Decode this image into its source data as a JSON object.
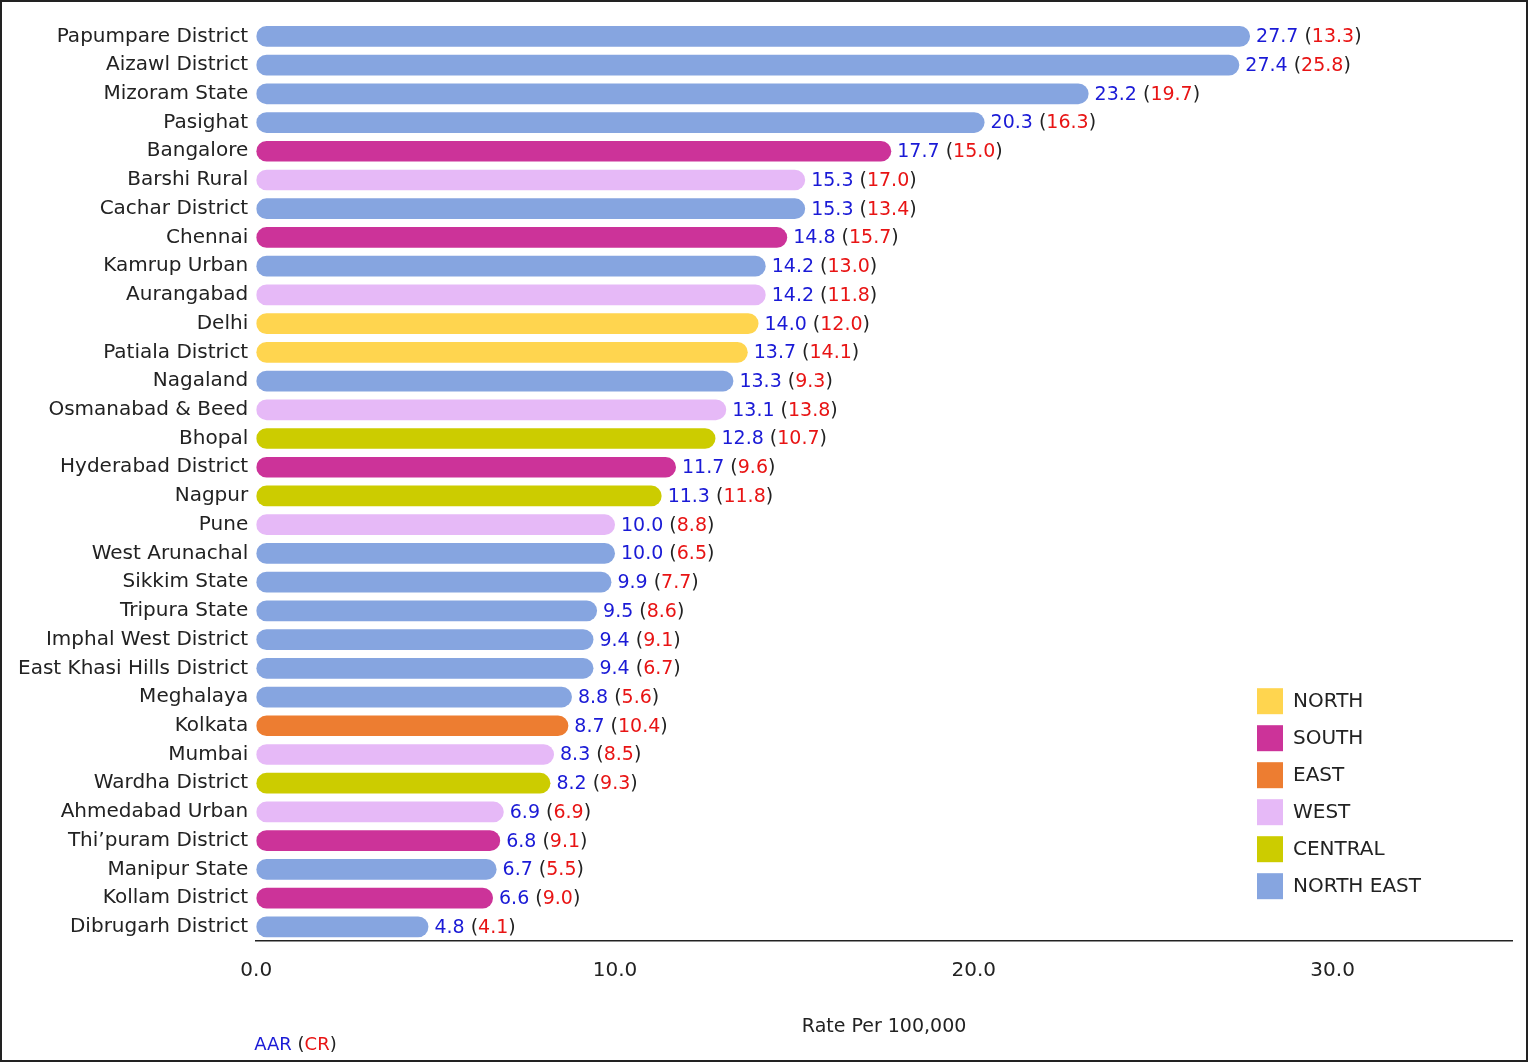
{
  "chart_data": {
    "type": "bar",
    "orientation": "horizontal",
    "categories": [
      "Papumpare District",
      "Aizawl District",
      "Mizoram State",
      "Pasighat",
      "Bangalore",
      "Barshi Rural",
      "Cachar District",
      "Chennai",
      "Kamrup Urban",
      "Aurangabad",
      "Delhi",
      "Patiala District",
      "Nagaland",
      "Osmanabad & Beed",
      "Bhopal",
      "Hyderabad District",
      "Nagpur",
      "Pune",
      "West Arunachal",
      "Sikkim State",
      "Tripura State",
      "Imphal West District",
      "East Khasi Hills District",
      "Meghalaya",
      "Kolkata",
      "Mumbai",
      "Wardha District",
      "Ahmedabad Urban",
      "Thi’puram District",
      "Manipur State",
      "Kollam District",
      "Dibrugarh District"
    ],
    "values": [
      27.7,
      27.4,
      23.2,
      20.3,
      17.7,
      15.3,
      15.3,
      14.8,
      14.2,
      14.2,
      14.0,
      13.7,
      13.3,
      13.1,
      12.8,
      11.7,
      11.3,
      10.0,
      10.0,
      9.9,
      9.5,
      9.4,
      9.4,
      8.8,
      8.7,
      8.3,
      8.2,
      6.9,
      6.8,
      6.7,
      6.6,
      4.8
    ],
    "value_labels": [
      "27.7",
      "27.4",
      "23.2",
      "20.3",
      "17.7",
      "15.3",
      "15.3",
      "14.8",
      "14.2",
      "14.2",
      "14.0",
      "13.7",
      "13.3",
      "13.1",
      "12.8",
      "11.7",
      "11.3",
      "10.0",
      "10.0",
      "9.9",
      "9.5",
      "9.4",
      "9.4",
      "8.8",
      "8.7",
      "8.3",
      "8.2",
      "6.9",
      "6.8",
      "6.7",
      "6.6",
      "4.8"
    ],
    "cr_values": [
      13.3,
      25.8,
      19.7,
      16.3,
      15.0,
      17.0,
      13.4,
      15.7,
      13.0,
      11.8,
      12.0,
      14.1,
      9.3,
      13.8,
      10.7,
      9.6,
      11.8,
      8.8,
      6.5,
      7.7,
      8.6,
      9.1,
      6.7,
      5.6,
      10.4,
      8.5,
      9.3,
      6.9,
      9.1,
      5.5,
      9.0,
      4.1
    ],
    "cr_labels": [
      "13.3",
      "25.8",
      "19.7",
      "16.3",
      "15.0",
      "17.0",
      "13.4",
      "15.7",
      "13.0",
      "11.8",
      "12.0",
      "14.1",
      "9.3",
      "13.8",
      "10.7",
      "9.6",
      "11.8",
      "8.8",
      "6.5",
      "7.7",
      "8.6",
      "9.1",
      "6.7",
      "5.6",
      "10.4",
      "8.5",
      "9.3",
      "6.9",
      "9.1",
      "5.5",
      "9.0",
      "4.1"
    ],
    "regions": [
      "NORTH EAST",
      "NORTH EAST",
      "NORTH EAST",
      "NORTH EAST",
      "SOUTH",
      "WEST",
      "NORTH EAST",
      "SOUTH",
      "NORTH EAST",
      "WEST",
      "NORTH",
      "NORTH",
      "NORTH EAST",
      "WEST",
      "CENTRAL",
      "SOUTH",
      "CENTRAL",
      "WEST",
      "NORTH EAST",
      "NORTH EAST",
      "NORTH EAST",
      "NORTH EAST",
      "NORTH EAST",
      "NORTH EAST",
      "EAST",
      "WEST",
      "CENTRAL",
      "WEST",
      "SOUTH",
      "NORTH EAST",
      "SOUTH",
      "NORTH EAST"
    ],
    "region_legend": [
      {
        "name": "NORTH",
        "color": "#ffd54f"
      },
      {
        "name": "SOUTH",
        "color": "#cc3399"
      },
      {
        "name": "EAST",
        "color": "#ed7d31"
      },
      {
        "name": "WEST",
        "color": "#e6b9f7"
      },
      {
        "name": "CENTRAL",
        "color": "#cccc00"
      },
      {
        "name": "NORTH EAST",
        "color": "#86a5e0"
      }
    ],
    "legend": "lower right",
    "label_key": {
      "first": "AAR",
      "first_color": "#1a1ad6",
      "second": "CR",
      "second_color": "#e81414",
      "brackets": [
        "(",
        ")"
      ]
    },
    "data_labels": true,
    "xlabel": "Rate Per 100,000",
    "xlim": [
      0,
      35
    ],
    "xticks": [
      {
        "value": 0,
        "label": "0.0"
      },
      {
        "value": 10,
        "label": "10.0"
      },
      {
        "value": 20,
        "label": "20.0"
      },
      {
        "value": 30,
        "label": "30.0"
      }
    ],
    "grid": false
  }
}
